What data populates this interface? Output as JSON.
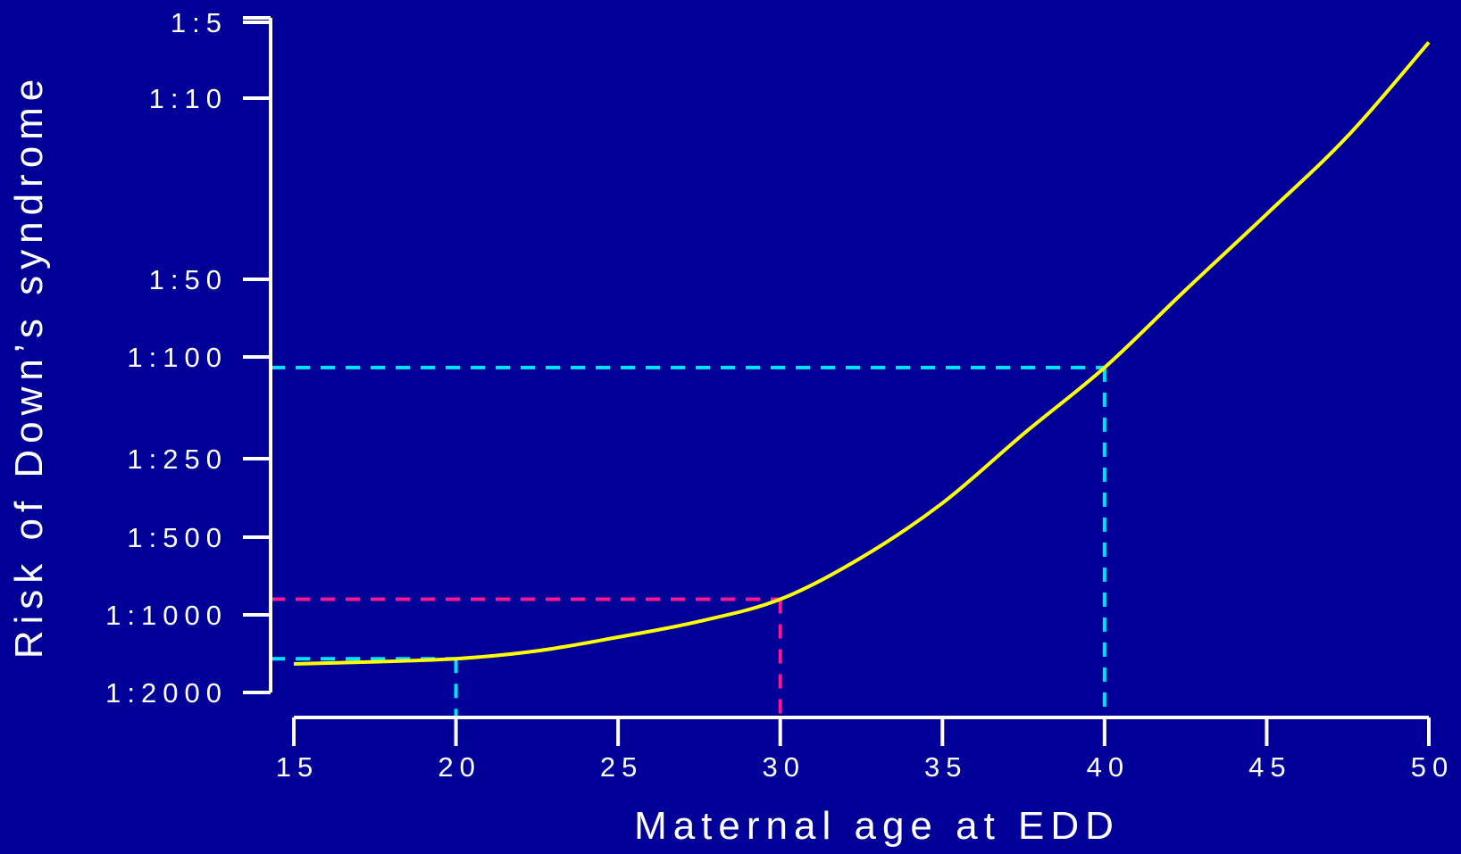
{
  "chart_data": {
    "type": "line",
    "background_color": "#000099",
    "axis_color": "#ffffff",
    "xlabel": "Maternal age at EDD",
    "ylabel": "Risk of Down’s syndrome",
    "x_ticks": [
      15,
      20,
      25,
      30,
      35,
      40,
      45,
      50
    ],
    "x_tick_labels": [
      "15",
      "20",
      "25",
      "30",
      "35",
      "40",
      "45",
      "50"
    ],
    "xlim": [
      15,
      50
    ],
    "y_scale": "log-odds",
    "y_ticks": [
      5,
      10,
      50,
      100,
      250,
      500,
      1000,
      2000
    ],
    "y_tick_labels": [
      "1:5",
      "1:10",
      "1:50",
      "1:100",
      "1:250",
      "1:500",
      "1:1000",
      "1:2000"
    ],
    "series": [
      {
        "color": "#ffff00",
        "x": [
          15,
          17.5,
          20,
          22.5,
          25,
          27.5,
          30,
          32.5,
          35,
          37.5,
          40,
          42.5,
          45,
          47.5,
          50
        ],
        "risk_one_in": [
          1550,
          1520,
          1480,
          1380,
          1220,
          1060,
          870,
          600,
          370,
          200,
          110,
          55,
          28,
          14,
          6
        ]
      }
    ],
    "reference_lines": [
      {
        "x": 20,
        "risk_one_in": 1480,
        "color": "#00e5ff"
      },
      {
        "x": 30,
        "risk_one_in": 870,
        "color": "#ff1493"
      },
      {
        "x": 40,
        "risk_one_in": 110,
        "color": "#00e5ff"
      }
    ]
  }
}
